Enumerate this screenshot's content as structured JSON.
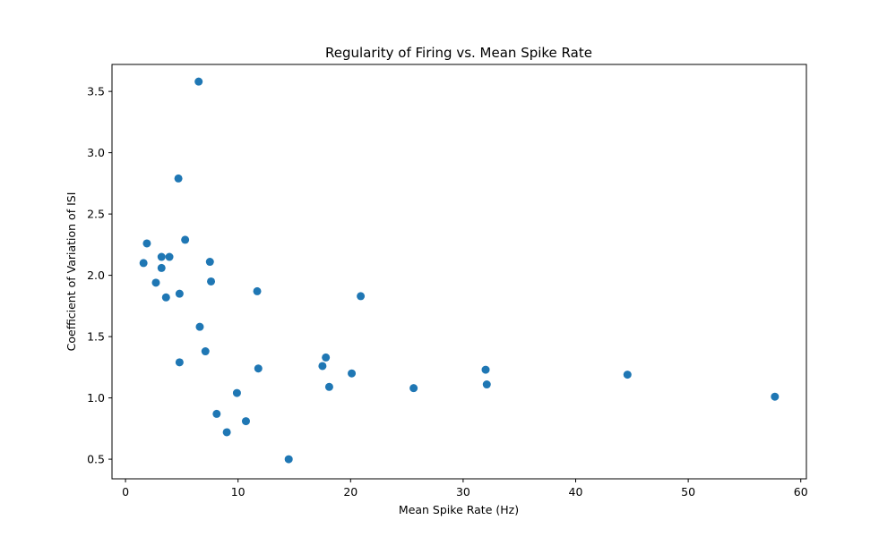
{
  "chart_data": {
    "type": "scatter",
    "title": "Regularity of Firing vs. Mean Spike Rate",
    "xlabel": "Mean Spike Rate (Hz)",
    "ylabel": "Coefficient of Variation of ISI",
    "xlim": [
      -1.2,
      60.5
    ],
    "ylim": [
      0.34,
      3.72
    ],
    "xticks": [
      0,
      10,
      20,
      30,
      40,
      50,
      60
    ],
    "xtick_labels": [
      "0",
      "10",
      "20",
      "30",
      "40",
      "50",
      "60"
    ],
    "yticks": [
      0.5,
      1.0,
      1.5,
      2.0,
      2.5,
      3.0,
      3.5
    ],
    "ytick_labels": [
      "0.5",
      "1.0",
      "1.5",
      "2.0",
      "2.5",
      "3.0",
      "3.5"
    ],
    "grid": false,
    "marker_color": "#1f77b4",
    "points": [
      {
        "x": 6.5,
        "y": 3.58
      },
      {
        "x": 4.7,
        "y": 2.79
      },
      {
        "x": 5.3,
        "y": 2.29
      },
      {
        "x": 1.9,
        "y": 2.26
      },
      {
        "x": 3.2,
        "y": 2.15
      },
      {
        "x": 3.9,
        "y": 2.15
      },
      {
        "x": 7.5,
        "y": 2.11
      },
      {
        "x": 1.6,
        "y": 2.1
      },
      {
        "x": 3.2,
        "y": 2.06
      },
      {
        "x": 7.6,
        "y": 1.95
      },
      {
        "x": 2.7,
        "y": 1.94
      },
      {
        "x": 11.7,
        "y": 1.87
      },
      {
        "x": 4.8,
        "y": 1.85
      },
      {
        "x": 20.9,
        "y": 1.83
      },
      {
        "x": 3.6,
        "y": 1.82
      },
      {
        "x": 6.6,
        "y": 1.58
      },
      {
        "x": 7.1,
        "y": 1.38
      },
      {
        "x": 17.8,
        "y": 1.33
      },
      {
        "x": 4.8,
        "y": 1.29
      },
      {
        "x": 17.5,
        "y": 1.26
      },
      {
        "x": 11.8,
        "y": 1.24
      },
      {
        "x": 32.0,
        "y": 1.23
      },
      {
        "x": 20.1,
        "y": 1.2
      },
      {
        "x": 44.6,
        "y": 1.19
      },
      {
        "x": 32.1,
        "y": 1.11
      },
      {
        "x": 18.1,
        "y": 1.09
      },
      {
        "x": 25.6,
        "y": 1.08
      },
      {
        "x": 9.9,
        "y": 1.04
      },
      {
        "x": 57.7,
        "y": 1.01
      },
      {
        "x": 8.1,
        "y": 0.87
      },
      {
        "x": 10.7,
        "y": 0.81
      },
      {
        "x": 9.0,
        "y": 0.72
      },
      {
        "x": 14.5,
        "y": 0.5
      }
    ]
  }
}
